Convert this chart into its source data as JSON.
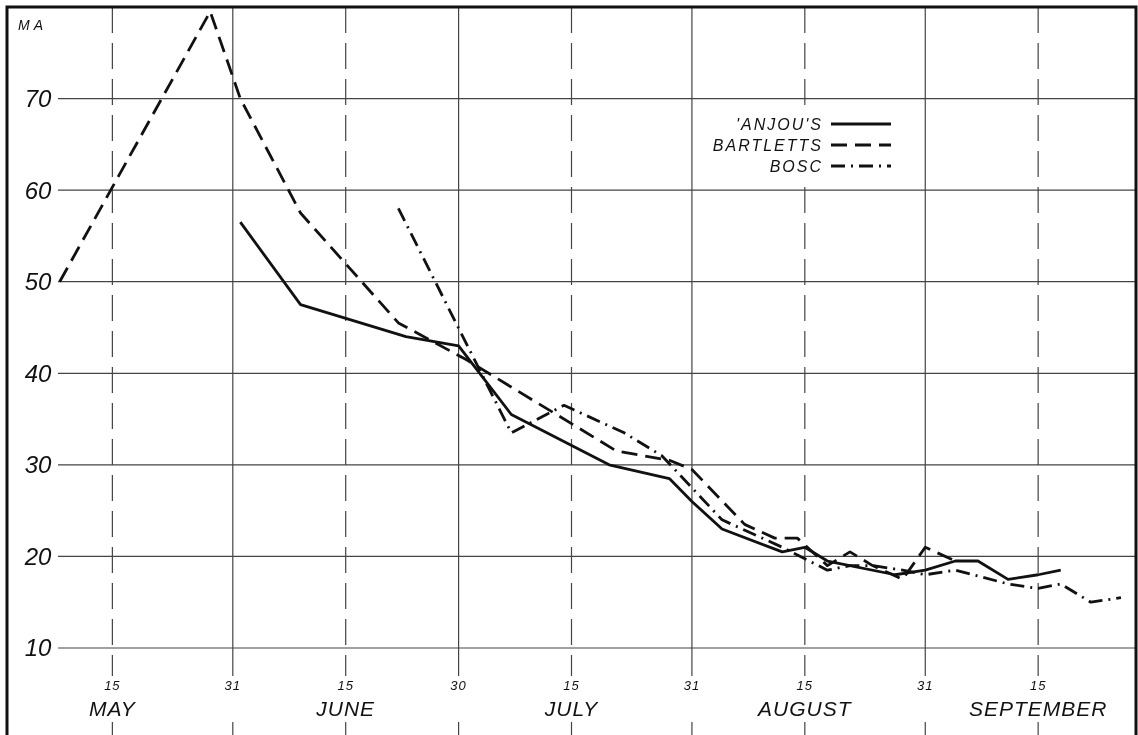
{
  "chart_data": {
    "type": "line",
    "ylabel": "MA",
    "xlim": [
      "--05-01",
      "--09-28"
    ],
    "ylim": [
      0.5,
      80
    ],
    "xticks": [
      {
        "value": "--05-15",
        "label": "15"
      },
      {
        "value": "--05-31",
        "label": "31"
      },
      {
        "value": "--06-15",
        "label": "15"
      },
      {
        "value": "--06-30",
        "label": "30"
      },
      {
        "value": "--07-15",
        "label": "15"
      },
      {
        "value": "--07-31",
        "label": "31"
      },
      {
        "value": "--08-15",
        "label": "15"
      },
      {
        "value": "--08-31",
        "label": "31"
      },
      {
        "value": "--09-15",
        "label": "15"
      }
    ],
    "annotations": [
      "MAY",
      "JUNE",
      "JULY",
      "AUGUST",
      "SEPTEMBER"
    ],
    "yticks": [
      10,
      20,
      30,
      40,
      50,
      60,
      70
    ],
    "grid": true,
    "legend": "top right",
    "series": [
      {
        "name": "'ANJOU'S",
        "color": "#111111",
        "line_style": "solid",
        "x": [
          "--06-01",
          "--06-09",
          "--06-23",
          "--06-30",
          "--07-07",
          "--07-20",
          "--07-28",
          "--07-31",
          "--08-04",
          "--08-12",
          "--08-15",
          "--08-18",
          "--08-27",
          "--08-31",
          "--09-04",
          "--09-07",
          "--09-11",
          "--09-15",
          "--09-18"
        ],
        "values": [
          56.5,
          47.5,
          44,
          43,
          35.5,
          30,
          28.5,
          26,
          23,
          20.5,
          21,
          19.5,
          18,
          18.5,
          19.5,
          19.5,
          17.5,
          18,
          18.5
        ]
      },
      {
        "name": "BARTLETTS",
        "color": "#111111",
        "line_style": "dashed",
        "x": [
          "--05-08",
          "--05-28",
          "--06-01",
          "--06-09",
          "--06-22",
          "--07-01",
          "--07-21",
          "--07-28",
          "--07-31",
          "--08-07",
          "--08-11",
          "--08-14",
          "--08-18",
          "--08-21",
          "--08-24",
          "--08-28",
          "--08-31",
          "--09-04"
        ],
        "values": [
          50,
          79.5,
          70,
          57.5,
          45.5,
          41.5,
          31.5,
          30.5,
          29.5,
          23.5,
          22,
          22,
          19,
          20.5,
          19,
          17.5,
          21,
          19.5
        ]
      },
      {
        "name": "BOSC",
        "color": "#111111",
        "line_style": "dashdot",
        "x": [
          "--06-22",
          "--07-07",
          "--07-14",
          "--07-22",
          "--07-27",
          "--07-31",
          "--08-04",
          "--08-12",
          "--08-18",
          "--08-21",
          "--08-24",
          "--08-28",
          "--08-31",
          "--09-04",
          "--09-11",
          "--09-15",
          "--09-18",
          "--09-22",
          "--09-26"
        ],
        "values": [
          58,
          33.5,
          36.5,
          33.5,
          31,
          27.5,
          24,
          21,
          18.5,
          19,
          19,
          18.5,
          18,
          18.5,
          17,
          16.5,
          17,
          15,
          15.5
        ]
      }
    ]
  }
}
